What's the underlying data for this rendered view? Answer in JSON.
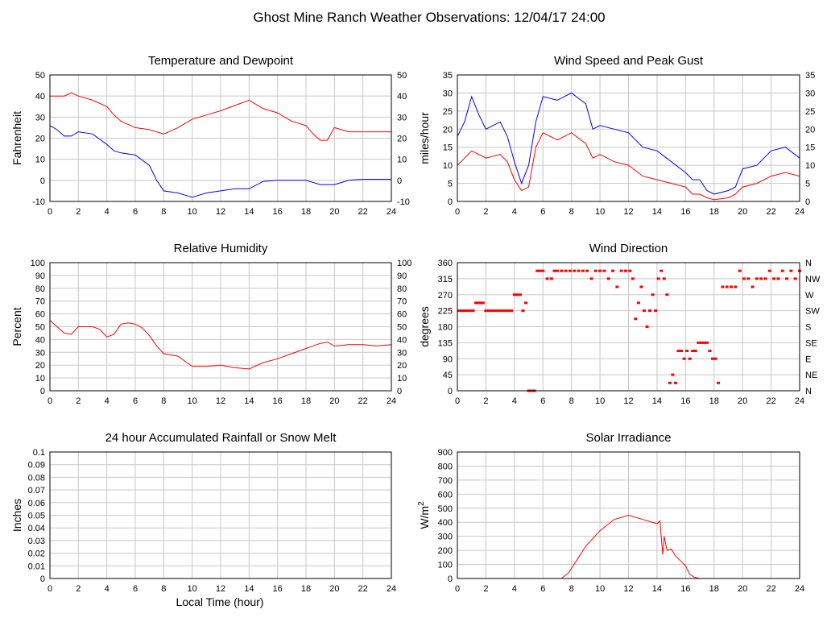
{
  "page": {
    "title": "Ghost Mine Ranch Weather Observations: 12/04/17 24:00",
    "bottom_xlabel": "Local Time (hour)"
  },
  "chart_data": [
    {
      "id": "temp",
      "type": "line",
      "title": "Temperature and Dewpoint",
      "ylabel": "Fahrenheit",
      "xlabel": "",
      "xlim": [
        0,
        24
      ],
      "ylim": [
        -10,
        50
      ],
      "xticks": [
        0,
        2,
        4,
        6,
        8,
        10,
        12,
        14,
        16,
        18,
        20,
        22,
        24
      ],
      "yticks": [
        -10,
        0,
        10,
        20,
        30,
        40,
        50
      ],
      "right_ticks": true,
      "grid": true,
      "series": [
        {
          "color": "#ff0000",
          "x": [
            0,
            1,
            1.5,
            2,
            3,
            4,
            4.5,
            5,
            6,
            7,
            8,
            9,
            10,
            11,
            12,
            13,
            14,
            15,
            16,
            17,
            18,
            18.5,
            19,
            19.5,
            20,
            21,
            22,
            23,
            24
          ],
          "y": [
            40,
            40,
            41.5,
            40,
            38,
            35,
            31,
            28,
            25,
            24,
            22,
            25,
            29,
            31,
            33,
            35.5,
            38,
            34,
            32,
            28,
            26,
            22,
            19,
            19,
            25,
            23,
            23,
            23,
            23
          ]
        },
        {
          "color": "#0000ff",
          "x": [
            0,
            0.5,
            1,
            1.5,
            2,
            3,
            4,
            4.5,
            5,
            6,
            7,
            7.5,
            8,
            9,
            9.5,
            10,
            11,
            12,
            13,
            14,
            15,
            16,
            17,
            18,
            19,
            20,
            21,
            22,
            23,
            24
          ],
          "y": [
            26,
            24,
            21,
            21,
            23,
            22,
            17,
            14,
            13,
            12,
            7,
            0,
            -5,
            -6,
            -7,
            -8,
            -6,
            -5,
            -4,
            -4,
            -0.5,
            0,
            0,
            0,
            -2,
            -2,
            0,
            0.5,
            0.5,
            0.5
          ]
        }
      ]
    },
    {
      "id": "wind",
      "type": "line",
      "title": "Wind Speed and Peak Gust",
      "ylabel": "miles/hour",
      "xlabel": "",
      "xlim": [
        0,
        24
      ],
      "ylim": [
        0,
        35
      ],
      "xticks": [
        0,
        2,
        4,
        6,
        8,
        10,
        12,
        14,
        16,
        18,
        20,
        22,
        24
      ],
      "yticks": [
        0,
        5,
        10,
        15,
        20,
        25,
        30,
        35
      ],
      "right_ticks": true,
      "grid": true,
      "series": [
        {
          "color": "#0000ff",
          "x": [
            0,
            0.5,
            1,
            1.5,
            2,
            3,
            3.5,
            4,
            4.5,
            5,
            5.5,
            6,
            7,
            8,
            9,
            9.5,
            10,
            11,
            12,
            13,
            14,
            15,
            16,
            16.5,
            17,
            17.5,
            18,
            19,
            19.5,
            20,
            21,
            22,
            23,
            24
          ],
          "y": [
            18,
            22,
            29,
            24,
            20,
            22,
            18,
            11,
            5,
            10,
            22,
            29,
            28,
            30,
            27,
            20,
            21,
            20,
            19,
            15,
            14,
            11,
            8,
            6,
            6,
            3,
            2,
            3,
            4,
            9,
            10,
            14,
            15,
            12
          ]
        },
        {
          "color": "#ff0000",
          "x": [
            0,
            0.5,
            1,
            1.5,
            2,
            3,
            3.5,
            4,
            4.5,
            5,
            5.5,
            6,
            7,
            8,
            9,
            9.5,
            10,
            11,
            12,
            13,
            14,
            15,
            16,
            16.5,
            17,
            17.5,
            18,
            19,
            19.5,
            20,
            21,
            22,
            23,
            24
          ],
          "y": [
            10,
            12,
            14,
            13,
            12,
            13,
            11,
            6,
            3,
            4,
            15,
            19,
            17,
            19,
            16,
            12,
            13,
            11,
            10,
            7,
            6,
            5,
            4,
            2,
            2,
            1,
            0.5,
            1,
            2,
            4,
            5,
            7,
            8,
            7
          ]
        }
      ]
    },
    {
      "id": "rh",
      "type": "line",
      "title": "Relative Humidity",
      "ylabel": "Percent",
      "xlabel": "",
      "xlim": [
        0,
        24
      ],
      "ylim": [
        0,
        100
      ],
      "xticks": [
        0,
        2,
        4,
        6,
        8,
        10,
        12,
        14,
        16,
        18,
        20,
        22,
        24
      ],
      "yticks": [
        0,
        10,
        20,
        30,
        40,
        50,
        60,
        70,
        80,
        90,
        100
      ],
      "right_ticks": true,
      "grid": true,
      "series": [
        {
          "color": "#ff0000",
          "x": [
            0,
            0.5,
            1,
            1.5,
            2,
            3,
            3.5,
            4,
            4.5,
            5,
            5.5,
            6,
            6.5,
            7,
            7.5,
            8,
            9,
            10,
            11,
            12,
            13,
            14,
            15,
            16,
            17,
            18,
            19,
            19.5,
            20,
            21,
            22,
            23,
            24
          ],
          "y": [
            55,
            50,
            45,
            44,
            50,
            50,
            48,
            42,
            44,
            52,
            53,
            52,
            49,
            43,
            35,
            29,
            27,
            19,
            19,
            20,
            18,
            17,
            22,
            25,
            29,
            33,
            37,
            38,
            35,
            36,
            36,
            35,
            36
          ]
        }
      ]
    },
    {
      "id": "winddir",
      "type": "scatter",
      "title": "Wind Direction",
      "ylabel": "degrees",
      "xlabel": "",
      "xlim": [
        0,
        24
      ],
      "ylim": [
        0,
        360
      ],
      "xticks": [
        0,
        2,
        4,
        6,
        8,
        10,
        12,
        14,
        16,
        18,
        20,
        22,
        24
      ],
      "yticks": [
        0,
        45,
        90,
        135,
        180,
        225,
        270,
        315,
        360
      ],
      "right_labels": [
        "N",
        "NE",
        "E",
        "SE",
        "S",
        "SW",
        "W",
        "NW",
        "N"
      ],
      "grid": true,
      "series": [
        {
          "color": "#ff0000",
          "x": [
            0.1,
            0.3,
            0.5,
            0.7,
            0.9,
            1.1,
            1.3,
            1.4,
            1.6,
            1.8,
            2.0,
            2.2,
            2.4,
            2.6,
            2.8,
            3.0,
            3.2,
            3.4,
            3.6,
            3.8,
            4.0,
            4.2,
            4.4,
            4.6,
            4.8,
            5.0,
            5.2,
            5.4,
            5.6,
            5.8,
            6.0,
            6.3,
            6.6,
            6.8,
            7.0,
            7.3,
            7.6,
            7.9,
            8.2,
            8.5,
            8.8,
            9.1,
            9.4,
            9.7,
            10.0,
            10.3,
            10.6,
            10.9,
            11.2,
            11.5,
            11.8,
            12.1,
            12.3,
            12.5,
            12.7,
            12.9,
            13.1,
            13.3,
            13.5,
            13.7,
            13.9,
            14.1,
            14.3,
            14.5,
            14.7,
            14.9,
            15.1,
            15.3,
            15.5,
            15.7,
            15.9,
            16.1,
            16.3,
            16.5,
            16.7,
            16.9,
            17.1,
            17.3,
            17.5,
            17.7,
            17.9,
            18.1,
            18.3,
            18.6,
            18.9,
            19.2,
            19.5,
            19.8,
            20.1,
            20.4,
            20.7,
            21.0,
            21.3,
            21.6,
            21.9,
            22.2,
            22.5,
            22.8,
            23.1,
            23.4,
            23.7,
            24.0
          ],
          "y": [
            225,
            225,
            225,
            225,
            225,
            225,
            247,
            247,
            247,
            247,
            225,
            225,
            225,
            225,
            225,
            225,
            225,
            225,
            225,
            225,
            270,
            270,
            270,
            225,
            247,
            0,
            0,
            0,
            337,
            337,
            337,
            315,
            315,
            337,
            337,
            337,
            337,
            337,
            337,
            337,
            337,
            337,
            315,
            337,
            337,
            337,
            315,
            337,
            292,
            337,
            337,
            337,
            315,
            202,
            247,
            292,
            225,
            180,
            225,
            270,
            225,
            315,
            337,
            315,
            270,
            22,
            45,
            22,
            112,
            112,
            90,
            112,
            90,
            112,
            112,
            135,
            135,
            135,
            135,
            112,
            90,
            90,
            22,
            292,
            292,
            292,
            292,
            337,
            315,
            315,
            292,
            315,
            315,
            315,
            337,
            315,
            315,
            337,
            315,
            337,
            315,
            337
          ]
        }
      ]
    },
    {
      "id": "rain",
      "type": "line",
      "title": "24 hour Accumulated Rainfall or Snow Melt",
      "ylabel": "Inches",
      "xlabel": "Local Time (hour)",
      "xlim": [
        0,
        24
      ],
      "ylim": [
        0,
        0.1
      ],
      "xticks": [
        0,
        2,
        4,
        6,
        8,
        10,
        12,
        14,
        16,
        18,
        20,
        22,
        24
      ],
      "yticks": [
        0,
        0.01,
        0.02,
        0.03,
        0.04,
        0.05,
        0.06,
        0.07,
        0.08,
        0.09,
        0.1
      ],
      "right_ticks": false,
      "grid": true,
      "series": [
        {
          "color": "#ff0000",
          "x": [
            0,
            24
          ],
          "y": [
            0,
            0
          ]
        }
      ]
    },
    {
      "id": "solar",
      "type": "area",
      "title": "Solar Irradiance",
      "ylabel": "W/m2",
      "xlabel": "",
      "xlim": [
        0,
        24
      ],
      "ylim": [
        0,
        900
      ],
      "xticks": [
        0,
        2,
        4,
        6,
        8,
        10,
        12,
        14,
        16,
        18,
        20,
        22,
        24
      ],
      "yticks": [
        0,
        100,
        200,
        300,
        400,
        500,
        600,
        700,
        800,
        900
      ],
      "right_ticks": false,
      "grid": true,
      "series": [
        {
          "color": "#ff0000",
          "x": [
            0,
            7.3,
            7.8,
            8.5,
            9,
            10,
            11,
            12,
            13,
            14,
            14.2,
            14.4,
            14.5,
            14.7,
            15,
            15.3,
            15.6,
            16,
            16.3,
            16.6,
            17,
            24
          ],
          "y": [
            0,
            0,
            40,
            150,
            230,
            340,
            420,
            450,
            420,
            390,
            410,
            170,
            300,
            200,
            210,
            160,
            130,
            90,
            30,
            10,
            0,
            0
          ]
        }
      ]
    }
  ]
}
